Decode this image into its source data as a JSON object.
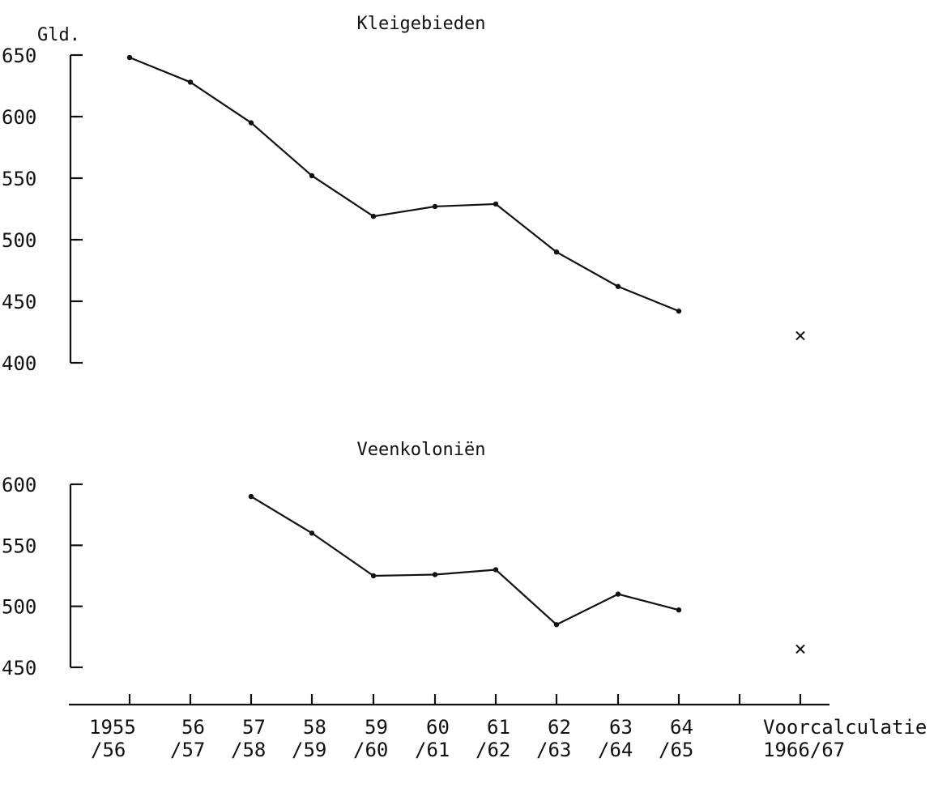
{
  "chart_data": [
    {
      "type": "line",
      "title": "Kleigebieden",
      "ylabel": "Gld.",
      "ylim": [
        400,
        650
      ],
      "yticks": [
        650,
        600,
        550,
        500,
        450,
        400
      ],
      "x": [
        "1955/56",
        "56/57",
        "57/58",
        "58/59",
        "59/60",
        "60/61",
        "61/62",
        "62/63",
        "63/64",
        "64/65"
      ],
      "series": [
        {
          "values": [
            648,
            628,
            595,
            552,
            519,
            527,
            529,
            490,
            462,
            442
          ]
        }
      ],
      "forecast": {
        "label": "Voorcalculatie 1966/67",
        "value": 422,
        "marker": "x"
      },
      "grid": false
    },
    {
      "type": "line",
      "title": "Veenkoloniën",
      "ylabel": "",
      "ylim": [
        450,
        600
      ],
      "yticks": [
        600,
        550,
        500,
        450
      ],
      "x": [
        "57/58",
        "58/59",
        "59/60",
        "60/61",
        "61/62",
        "62/63",
        "63/64",
        "64/65"
      ],
      "series": [
        {
          "values": [
            590,
            560,
            525,
            526,
            530,
            485,
            510,
            497
          ]
        }
      ],
      "forecast": {
        "label": "Voorcalculatie 1966/67",
        "value": 465,
        "marker": "x"
      },
      "grid": false
    }
  ],
  "x_axis": {
    "ticks": [
      {
        "top": "1955",
        "bottom": "/56"
      },
      {
        "top": "56",
        "bottom": "/57"
      },
      {
        "top": "57",
        "bottom": "/58"
      },
      {
        "top": "58",
        "bottom": "/59"
      },
      {
        "top": "59",
        "bottom": "/60"
      },
      {
        "top": "60",
        "bottom": "/61"
      },
      {
        "top": "61",
        "bottom": "/62"
      },
      {
        "top": "62",
        "bottom": "/63"
      },
      {
        "top": "63",
        "bottom": "/64"
      },
      {
        "top": "64",
        "bottom": "/65"
      },
      {
        "top": "",
        "bottom": ""
      },
      {
        "top": "Voorcalculatie",
        "bottom": "1966/67"
      }
    ]
  },
  "colors": {
    "ink": "#111111",
    "background": "#ffffff"
  }
}
